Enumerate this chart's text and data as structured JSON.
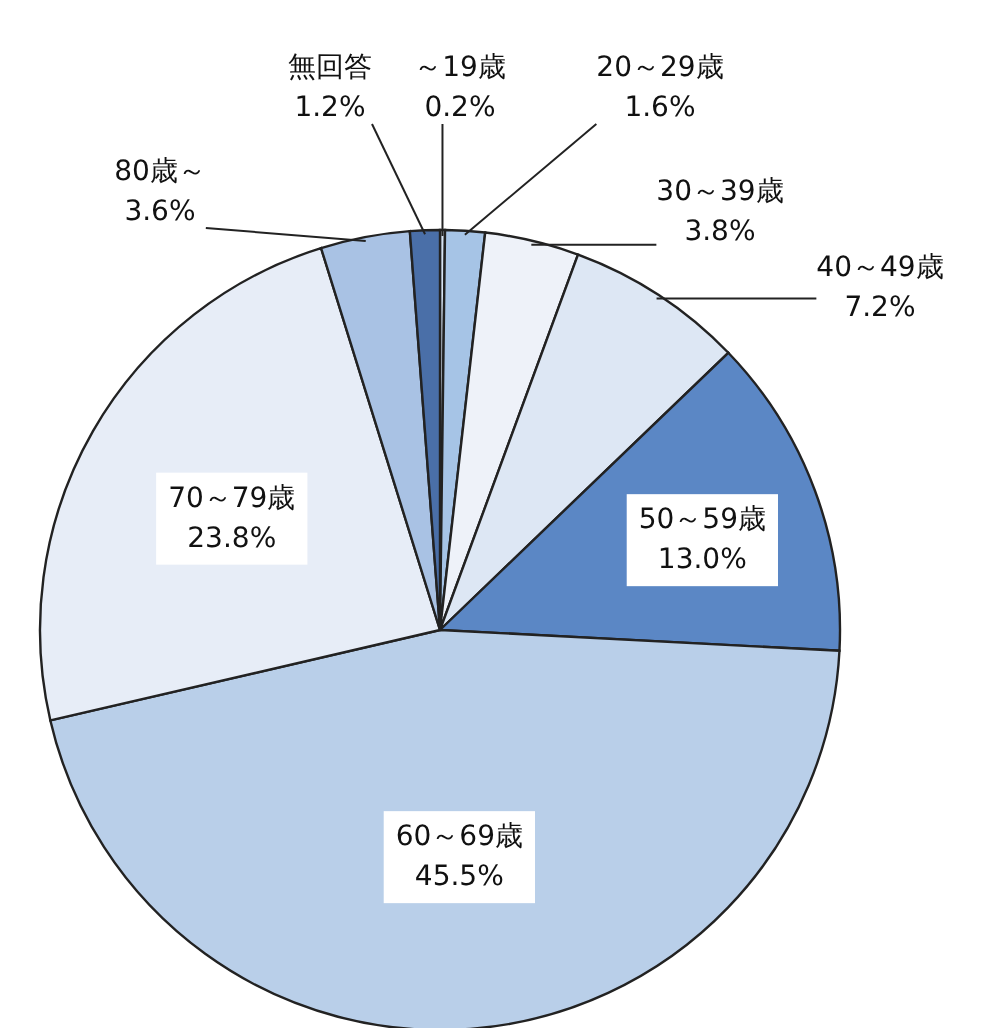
{
  "chart_data": {
    "type": "pie",
    "categories": [
      "～19歳",
      "20～29歳",
      "30～39歳",
      "40～49歳",
      "50～59歳",
      "60～69歳",
      "70～79歳",
      "80歳～",
      "無回答"
    ],
    "values": [
      0.2,
      1.6,
      3.8,
      7.2,
      13.0,
      45.5,
      23.8,
      3.6,
      1.2
    ],
    "colors": [
      "#d6e3f3",
      "#a6c4e6",
      "#eef2f9",
      "#dde7f4",
      "#5b87c5",
      "#b9cfe9",
      "#e7edf7",
      "#a9c2e4",
      "#4a6fa8"
    ],
    "value_labels": [
      "0.2%",
      "1.6%",
      "3.8%",
      "7.2%",
      "13.0%",
      "45.5%",
      "23.8%",
      "3.6%",
      "1.2%"
    ]
  }
}
